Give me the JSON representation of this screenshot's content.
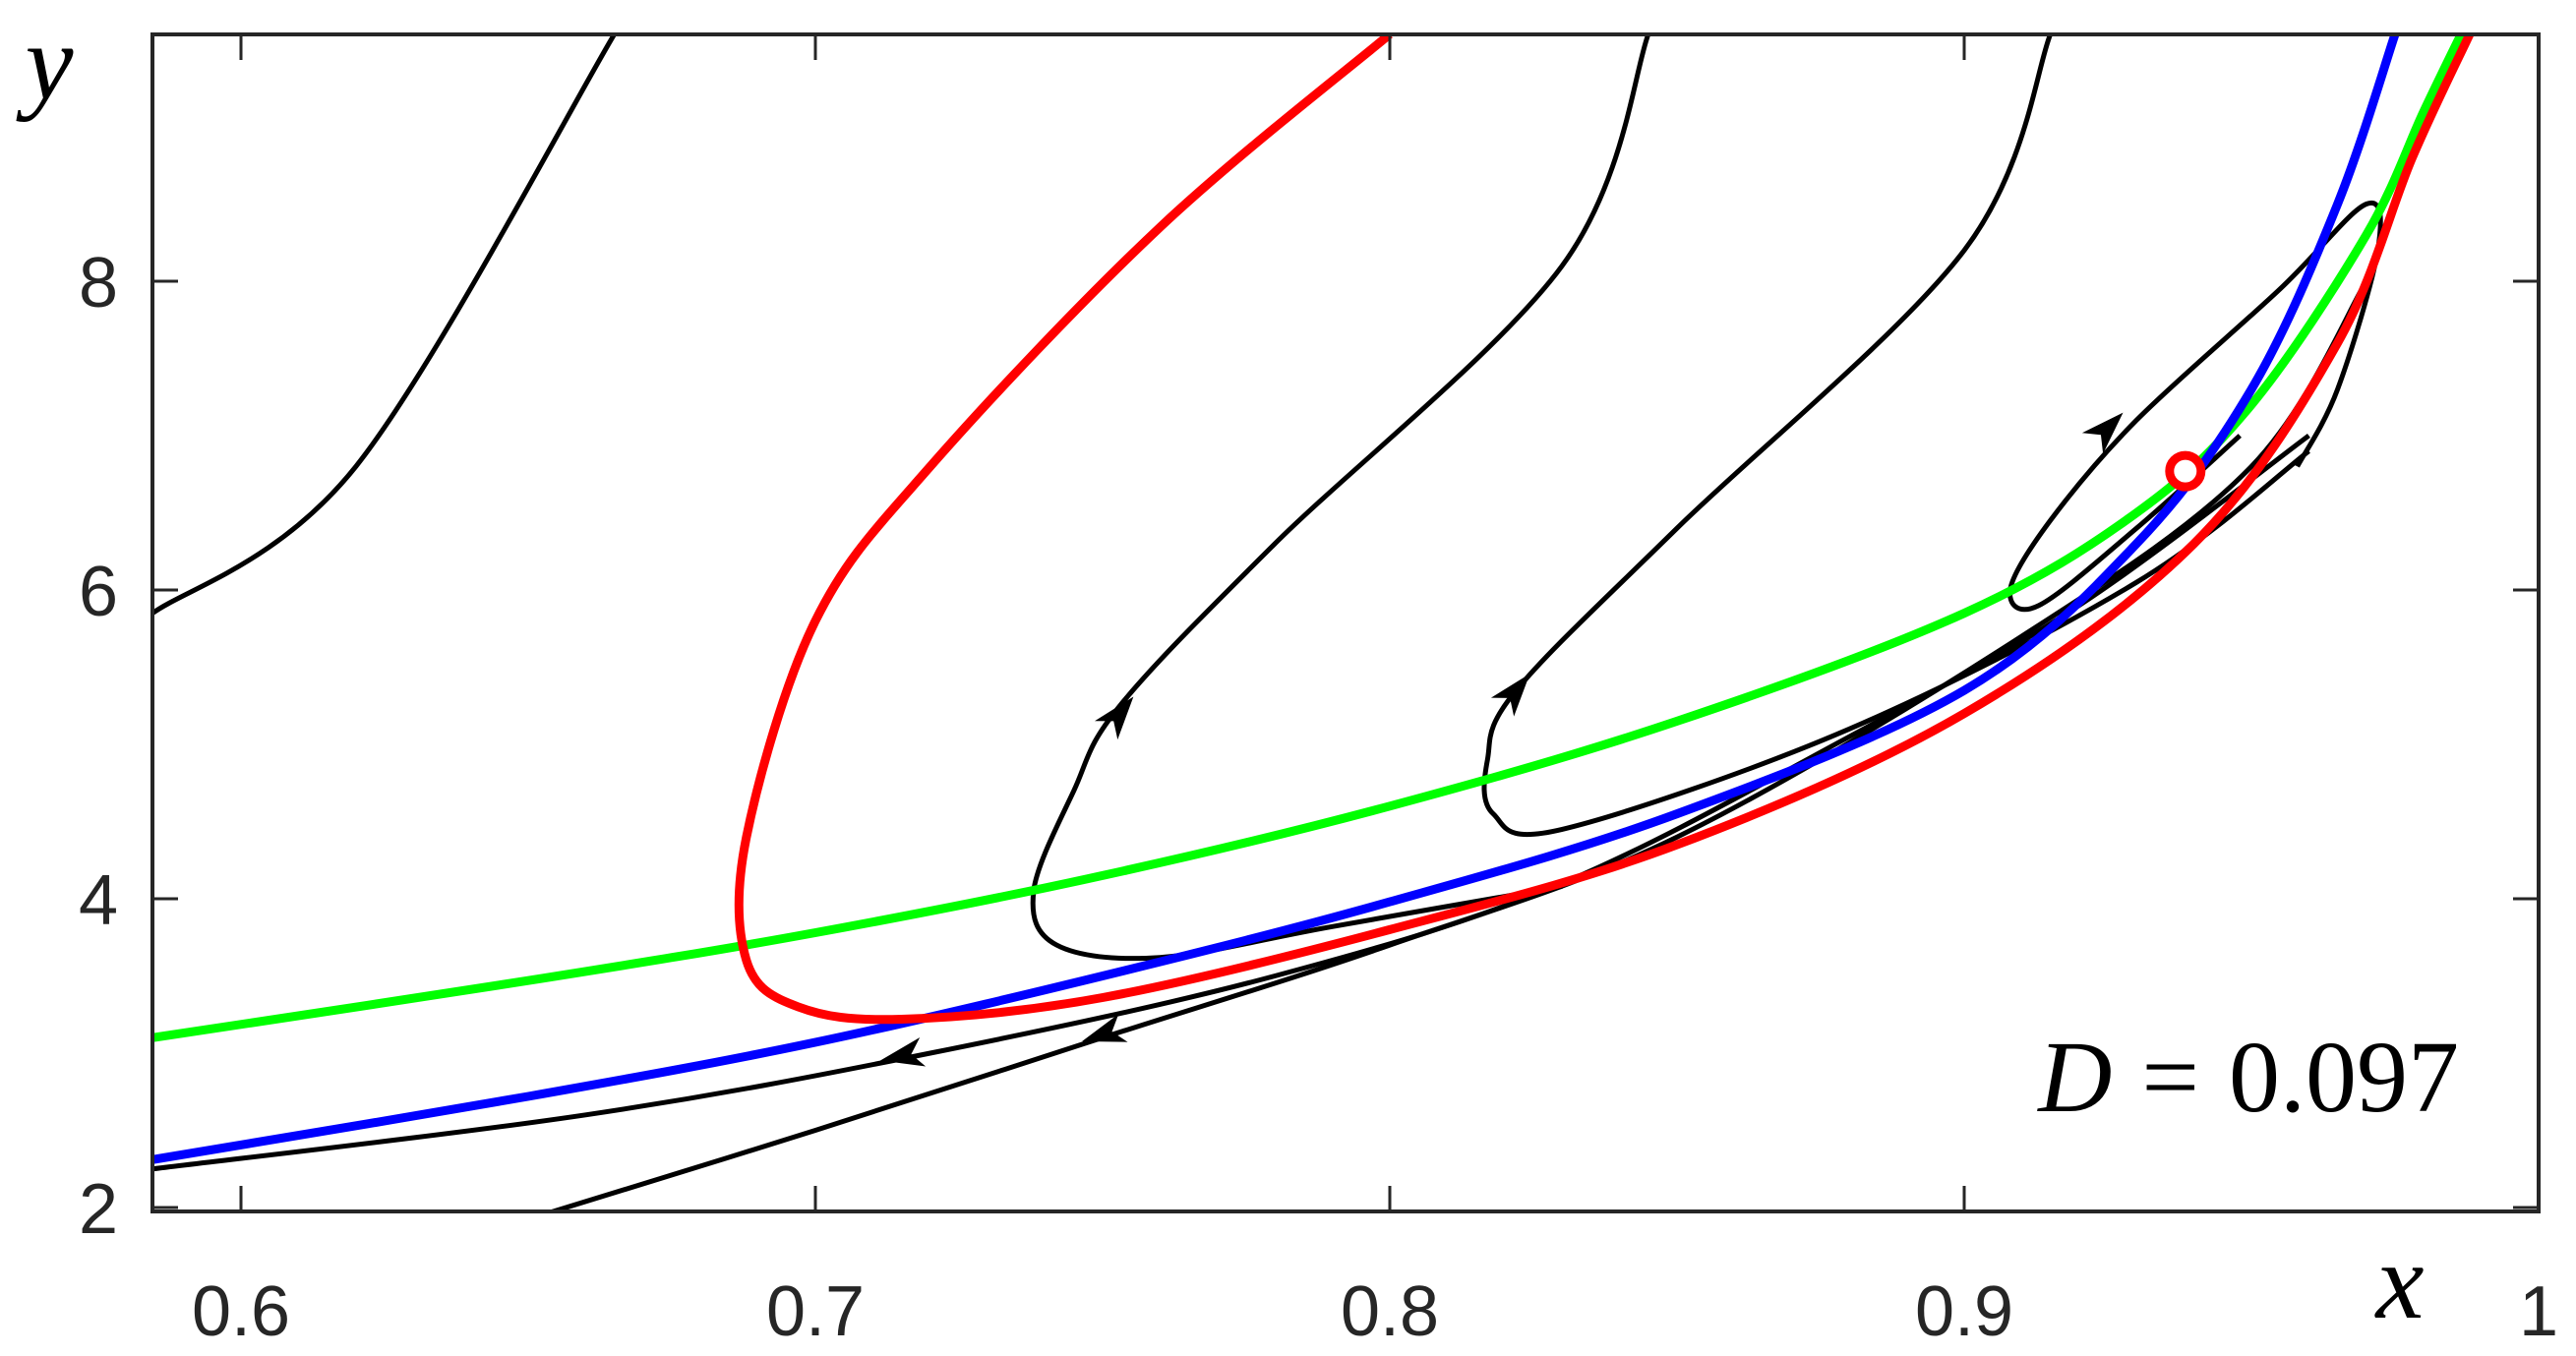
{
  "chart_data": {
    "type": "line",
    "title": "",
    "xlabel": "x",
    "ylabel": "y",
    "xlim": [
      0.5846,
      1.0
    ],
    "ylim": [
      1.97,
      9.6
    ],
    "x_ticks": [
      0.6,
      0.7,
      0.8,
      0.9,
      1
    ],
    "x_tick_labels": [
      "0.6",
      "0.7",
      "0.8",
      "0.9",
      "1"
    ],
    "y_ticks": [
      2,
      4,
      6,
      8
    ],
    "y_tick_labels": [
      "2",
      "4",
      "6",
      "8"
    ],
    "grid": false,
    "legend": null,
    "annotation": {
      "variable": "D",
      "equals": "=",
      "value": "0.097",
      "position": [
        0.94,
        2.9
      ]
    },
    "equilibrium_point": {
      "x": 0.9385,
      "y": 6.77,
      "marker": "open-circle",
      "color": "#ff0000"
    },
    "series": [
      {
        "name": "green-nullcline",
        "color": "#00ff00",
        "width": 9,
        "points": [
          [
            0.5846,
            3.1
          ],
          [
            0.65,
            3.47
          ],
          [
            0.7,
            3.78
          ],
          [
            0.75,
            4.15
          ],
          [
            0.8,
            4.6
          ],
          [
            0.85,
            5.15
          ],
          [
            0.9,
            5.85
          ],
          [
            0.93,
            6.5
          ],
          [
            0.95,
            7.2
          ],
          [
            0.97,
            8.3
          ],
          [
            0.98,
            9.1
          ],
          [
            0.9865,
            9.6
          ]
        ]
      },
      {
        "name": "blue-nullcline",
        "color": "#0000ff",
        "width": 9,
        "points": [
          [
            0.5846,
            2.31
          ],
          [
            0.65,
            2.72
          ],
          [
            0.7,
            3.07
          ],
          [
            0.75,
            3.5
          ],
          [
            0.8,
            3.98
          ],
          [
            0.85,
            4.55
          ],
          [
            0.9,
            5.35
          ],
          [
            0.93,
            6.3
          ],
          [
            0.95,
            7.3
          ],
          [
            0.965,
            8.5
          ],
          [
            0.975,
            9.6
          ]
        ]
      },
      {
        "name": "red-separatrix",
        "color": "#ff0000",
        "width": 9,
        "points": [
          [
            0.8,
            9.6
          ],
          [
            0.76,
            8.35
          ],
          [
            0.72,
            6.8
          ],
          [
            0.7,
            5.8
          ],
          [
            0.688,
            4.4
          ],
          [
            0.688,
            3.6
          ],
          [
            0.697,
            3.3
          ],
          [
            0.715,
            3.22
          ],
          [
            0.75,
            3.36
          ],
          [
            0.8,
            3.8
          ],
          [
            0.85,
            4.35
          ],
          [
            0.9,
            5.2
          ],
          [
            0.94,
            6.3
          ],
          [
            0.965,
            7.6
          ],
          [
            0.978,
            8.8
          ],
          [
            0.988,
            9.6
          ]
        ]
      },
      {
        "name": "trajectory-1",
        "color": "#000000",
        "width": 5,
        "points": [
          [
            0.5846,
            5.85
          ],
          [
            0.62,
            6.8
          ],
          [
            0.665,
            9.6
          ]
        ],
        "direction": "none"
      },
      {
        "name": "trajectory-2",
        "color": "#000000",
        "width": 5,
        "points": [
          [
            0.83,
            4.08
          ],
          [
            0.79,
            3.82
          ],
          [
            0.76,
            3.62
          ],
          [
            0.742,
            3.7
          ],
          [
            0.738,
            4.05
          ],
          [
            0.745,
            4.7
          ],
          [
            0.753,
            5.25
          ],
          [
            0.78,
            6.3
          ],
          [
            0.83,
            8.1
          ],
          [
            0.845,
            9.6
          ]
        ],
        "arrows": [
          [
            0.753,
            5.2,
            "up"
          ]
        ]
      },
      {
        "name": "trajectory-3",
        "color": "#000000",
        "width": 5,
        "points": [
          [
            0.96,
            6.9
          ],
          [
            0.93,
            6.05
          ],
          [
            0.88,
            5.1
          ],
          [
            0.83,
            4.45
          ],
          [
            0.818,
            4.55
          ],
          [
            0.817,
            4.9
          ],
          [
            0.822,
            5.35
          ],
          [
            0.85,
            6.4
          ],
          [
            0.9,
            8.2
          ],
          [
            0.915,
            9.6
          ]
        ],
        "arrows": [
          [
            0.822,
            5.35,
            "up"
          ]
        ]
      },
      {
        "name": "trajectory-4",
        "color": "#000000",
        "width": 5,
        "points": [
          [
            0.948,
            7.0
          ],
          [
            0.93,
            6.4
          ],
          [
            0.913,
            5.9
          ],
          [
            0.908,
            6.0
          ],
          [
            0.915,
            6.45
          ],
          [
            0.93,
            7.1
          ],
          [
            0.955,
            7.95
          ],
          [
            0.97,
            8.5
          ],
          [
            0.972,
            8.2
          ],
          [
            0.965,
            7.3
          ],
          [
            0.958,
            6.8
          ]
        ],
        "arrows": [
          [
            0.925,
            7.05,
            "up"
          ]
        ]
      },
      {
        "name": "trajectory-5",
        "color": "#000000",
        "width": 5,
        "points": [
          [
            0.96,
            7.0
          ],
          [
            0.92,
            5.9
          ],
          [
            0.88,
            5.05
          ],
          [
            0.83,
            4.1
          ],
          [
            0.78,
            3.5
          ],
          [
            0.72,
            3.0
          ],
          [
            0.66,
            2.6
          ],
          [
            0.5846,
            2.25
          ]
        ],
        "arrows": [
          [
            0.715,
            2.98,
            "left"
          ]
        ]
      },
      {
        "name": "trajectory-6",
        "color": "#000000",
        "width": 5,
        "points": [
          [
            0.97,
            8.0
          ],
          [
            0.95,
            6.8
          ],
          [
            0.91,
            5.7
          ],
          [
            0.85,
            4.4
          ],
          [
            0.8,
            3.7
          ],
          [
            0.75,
            3.1
          ],
          [
            0.7,
            2.5
          ],
          [
            0.654,
            1.97
          ]
        ],
        "arrows": [
          [
            0.75,
            3.12,
            "left"
          ]
        ]
      }
    ]
  },
  "axes": {
    "x_label": "x",
    "y_label": "y",
    "x_tick_labels": [
      "0.6",
      "0.7",
      "0.8",
      "0.9",
      "1"
    ],
    "y_tick_labels": [
      "2",
      "4",
      "6",
      "8"
    ]
  },
  "annotation": {
    "variable": "D",
    "equals": "=",
    "value": "0.097"
  },
  "colors": {
    "axis": "#262626",
    "green": "#00ff00",
    "blue": "#0000ff",
    "red": "#ff0000",
    "black": "#000000"
  }
}
